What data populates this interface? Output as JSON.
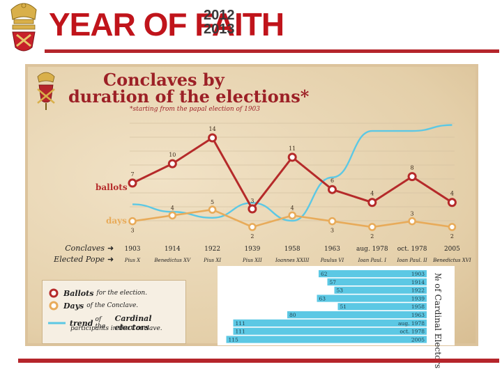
{
  "header": {
    "title": "YEAR OF FAITH",
    "year_start": "2012",
    "year_end": "2013"
  },
  "colors": {
    "accent": "#c0141b",
    "ballots": "#b52a2a",
    "days": "#e8ab5a",
    "electors": "#5cc8e4",
    "panel": "#e8d5b4"
  },
  "chart_data": [
    {
      "type": "line",
      "title": "Conclaves by",
      "subtitle": "duration of the elections*",
      "note": "*starting from the papal election of 1903",
      "row_labels": [
        "Conclaves",
        "Elected Pope"
      ],
      "categories": [
        "1903",
        "1914",
        "1922",
        "1939",
        "1958",
        "1963",
        "aug. 1978",
        "oct. 1978",
        "2005"
      ],
      "popes": [
        "Pius X",
        "Benedictus XV",
        "Pius XI",
        "Pius XII",
        "Ioannes XXIII",
        "Paulus VI",
        "Ioan Paul. I",
        "Ioan Paul. II",
        "Benedictus XVI"
      ],
      "series": [
        {
          "name": "ballots",
          "values": [
            7,
            10,
            14,
            3,
            11,
            6,
            4,
            8,
            4
          ]
        },
        {
          "name": "days",
          "values": [
            3,
            4,
            5,
            2,
            4,
            3,
            2,
            3,
            2
          ]
        },
        {
          "name": "trend of the Cardinal electors",
          "values": [
            62,
            57,
            53,
            63,
            51,
            80,
            111,
            111,
            115
          ]
        }
      ],
      "grid": true
    },
    {
      "type": "bar",
      "title": "№ of Cardinal Electors",
      "categories": [
        "1903",
        "1914",
        "1922",
        "1939",
        "1958",
        "1963",
        "aug. 1978",
        "oct. 1978",
        "2005"
      ],
      "values": [
        62,
        57,
        53,
        63,
        51,
        80,
        111,
        111,
        115
      ]
    }
  ],
  "legend": {
    "ballots_bold": "Ballots",
    "ballots_rest": "for the election.",
    "days_bold": "Days",
    "days_rest": "of the Conclave.",
    "trend_pre": "trend",
    "trend_mid": "of the",
    "trend_bold": "Cardinal electors",
    "trend_sub": "participants in the Conclave."
  }
}
